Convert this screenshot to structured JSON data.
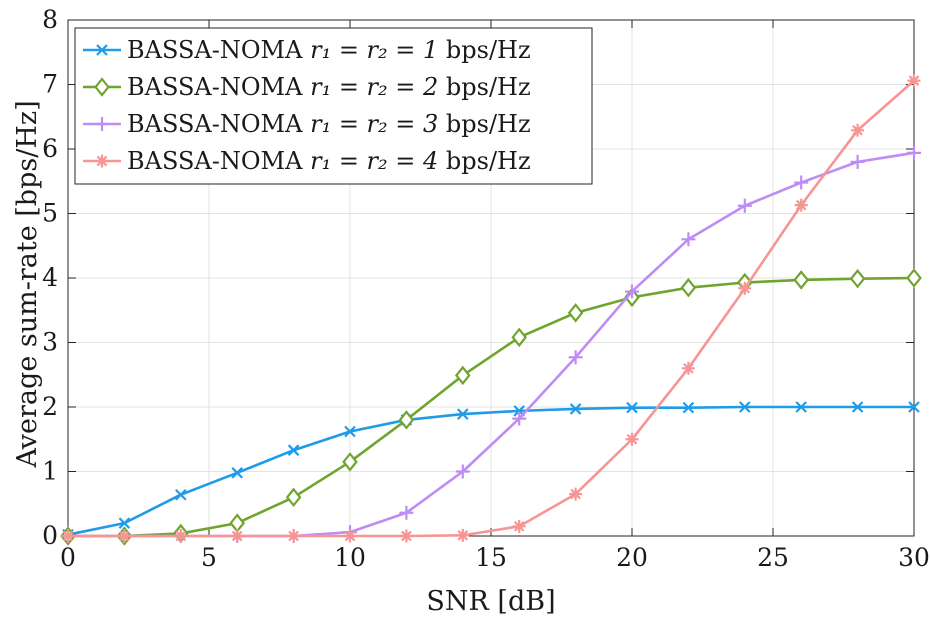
{
  "chart_data": {
    "type": "line",
    "title": "",
    "xlabel": "SNR [dB]",
    "ylabel": "Average sum-rate [bps/Hz]",
    "xlim": [
      0,
      30
    ],
    "ylim": [
      0,
      8
    ],
    "xticks": [
      0,
      5,
      10,
      15,
      20,
      25,
      30
    ],
    "yticks": [
      0,
      1,
      2,
      3,
      4,
      5,
      6,
      7,
      8
    ],
    "grid": true,
    "legend_position": "top-left",
    "x": [
      0,
      2,
      4,
      6,
      8,
      10,
      12,
      14,
      16,
      18,
      20,
      22,
      24,
      26,
      28,
      30
    ],
    "series": [
      {
        "name": "BASSA-NOMA r1 = r2 = 1 bps/Hz",
        "legend": {
          "prefix": "BASSA-NOMA ",
          "math": "r₁ = r₂ = 1",
          "suffix": " bps/Hz"
        },
        "color": "#1f9be8",
        "marker": "x",
        "values": [
          0.02,
          0.2,
          0.64,
          0.98,
          1.33,
          1.62,
          1.8,
          1.89,
          1.94,
          1.97,
          1.99,
          1.99,
          2.0,
          2.0,
          2.0,
          2.0
        ]
      },
      {
        "name": "BASSA-NOMA r1 = r2 = 2 bps/Hz",
        "legend": {
          "prefix": "BASSA-NOMA ",
          "math": "r₁ = r₂ = 2",
          "suffix": " bps/Hz"
        },
        "color": "#6fa52e",
        "marker": "diamond",
        "values": [
          0.0,
          0.0,
          0.04,
          0.2,
          0.6,
          1.15,
          1.8,
          2.49,
          3.08,
          3.46,
          3.7,
          3.85,
          3.93,
          3.97,
          3.99,
          4.0
        ]
      },
      {
        "name": "BASSA-NOMA r1 = r2 = 3 bps/Hz",
        "legend": {
          "prefix": "BASSA-NOMA ",
          "math": "r₁ = r₂ = 3",
          "suffix": " bps/Hz"
        },
        "color": "#bd8cf5",
        "marker": "plus",
        "values": [
          0.0,
          0.0,
          0.0,
          0.0,
          0.0,
          0.06,
          0.36,
          1.0,
          1.82,
          2.77,
          3.79,
          4.6,
          5.12,
          5.48,
          5.8,
          5.94
        ]
      },
      {
        "name": "BASSA-NOMA r1 = r2 = 4 bps/Hz",
        "legend": {
          "prefix": "BASSA-NOMA ",
          "math": "r₁ = r₂ = 4",
          "suffix": " bps/Hz"
        },
        "color": "#f79595",
        "marker": "asterisk",
        "values": [
          0.0,
          0.0,
          0.0,
          0.0,
          0.0,
          0.0,
          0.0,
          0.01,
          0.15,
          0.65,
          1.5,
          2.6,
          3.84,
          5.13,
          6.29,
          7.06
        ]
      }
    ]
  }
}
